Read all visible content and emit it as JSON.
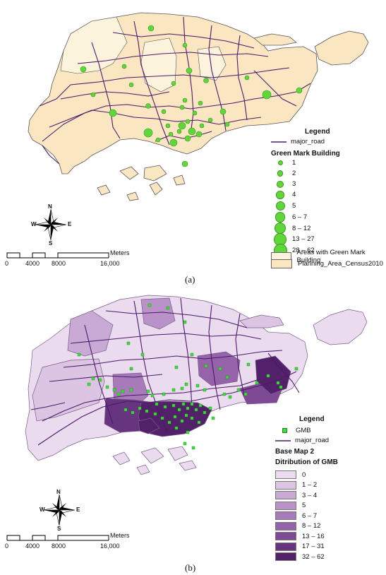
{
  "panel_a": {
    "caption": "(a)",
    "legend_title": "Legend",
    "road_label": "major_road",
    "dots_title": "Green Mark Building",
    "dot_classes": [
      "1",
      "2",
      "3",
      "4",
      "5",
      "6 – 7",
      "8 – 12",
      "13 – 27",
      "28 – 62"
    ],
    "area_gmb_label": "Areas with Green Mark Building",
    "planning_label": "Planning_Area_Census2010",
    "colors": {
      "land": "#fbe6c2",
      "land_light": "#fcf3dc",
      "outline": "#555555",
      "road": "#4b1a6a",
      "dot": "#5fd63a",
      "dot_edge": "#3a9a1e"
    }
  },
  "panel_b": {
    "caption": "(b)",
    "legend_title": "Legend",
    "gmb_label": "GMB",
    "road_label": "major_road",
    "base_title": "Base Map 2",
    "dist_title": "Ditribution of GMB",
    "classes": [
      {
        "label": "0",
        "color": "#ebdbee"
      },
      {
        "label": "1 – 2",
        "color": "#dbc5e3"
      },
      {
        "label": "3 – 4",
        "color": "#c8aad5"
      },
      {
        "label": "5",
        "color": "#b993c8"
      },
      {
        "label": "6 – 7",
        "color": "#a77ab9"
      },
      {
        "label": "8 – 12",
        "color": "#9563a9"
      },
      {
        "label": "13 – 16",
        "color": "#7d4a93"
      },
      {
        "label": "17 – 31",
        "color": "#673480"
      },
      {
        "label": "32 – 62",
        "color": "#522169"
      }
    ],
    "colors": {
      "gmb": "#3fdc3a",
      "road": "#4b1a6a"
    }
  },
  "compass": {
    "n": "N",
    "s": "S",
    "e": "E",
    "w": "W"
  },
  "scale": {
    "unit": "Meters",
    "ticks": [
      "0",
      "4000",
      "8000",
      "16,000"
    ]
  }
}
